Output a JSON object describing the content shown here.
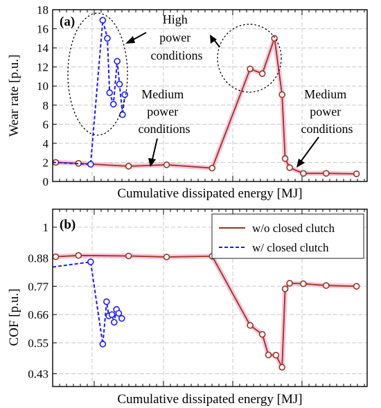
{
  "chart_data": [
    {
      "panel_label": "(a)",
      "type": "line",
      "xlabel": "Cumulative dissipated energy [MJ]",
      "ylabel": "Wear rate [p.u.]",
      "ylim": [
        0,
        18
      ],
      "yticks": [
        0,
        2,
        4,
        6,
        8,
        10,
        12,
        14,
        16,
        18
      ],
      "xticks_labeled": false,
      "grid": true,
      "series": [
        {
          "key": "wo",
          "color": "#a03020",
          "dash": "solid",
          "x": [
            -0.3,
            1.2,
            4.5,
            7.0,
            10.0,
            12.5,
            13.3,
            14.1,
            14.6,
            14.8,
            15.1,
            16.0,
            17.5,
            19.5
          ],
          "y": [
            2.0,
            1.9,
            1.6,
            1.75,
            1.4,
            11.8,
            11.3,
            15.0,
            9.1,
            2.4,
            1.45,
            0.85,
            0.85,
            0.8
          ]
        },
        {
          "key": "w",
          "color": "#1a1aff",
          "dash": "dashed",
          "x": [
            -0.5,
            2.0,
            2.8,
            3.1,
            3.25,
            3.5,
            3.75,
            3.9,
            4.1,
            4.25
          ],
          "y": [
            2.0,
            1.8,
            16.9,
            15.0,
            9.3,
            8.1,
            12.6,
            10.2,
            7.0,
            9.1
          ]
        }
      ],
      "annotations": [
        {
          "lines": [
            "High",
            "power",
            "conditions"
          ]
        },
        {
          "lines": [
            "Medium",
            "power",
            "conditions"
          ]
        },
        {
          "lines": [
            "Medium",
            "power",
            "conditions"
          ]
        }
      ]
    },
    {
      "panel_label": "(b)",
      "type": "line",
      "xlabel": "Cumulative dissipated energy [MJ]",
      "ylabel": "COF [p.u.]",
      "ylim": [
        0.38,
        1.07
      ],
      "yticks": [
        0.43,
        0.55,
        0.66,
        0.77,
        0.88,
        1
      ],
      "yticklabels": [
        "0.43",
        "0.55",
        "0.66",
        "0.77",
        "0.88",
        "1"
      ],
      "xticks_labeled": false,
      "grid": true,
      "legend": {
        "placement": "top-right",
        "entries": [
          {
            "key": "wo",
            "label": "w/o closed clutch"
          },
          {
            "key": "w",
            "label": "w/ closed clutch"
          }
        ]
      },
      "series": [
        {
          "key": "wo",
          "color": "#a03020",
          "dash": "solid",
          "x": [
            -0.3,
            1.2,
            4.5,
            7.0,
            10.0,
            12.5,
            13.3,
            13.7,
            14.2,
            14.6,
            14.8,
            15.1,
            16.0,
            17.5,
            19.5
          ],
          "y": [
            0.885,
            0.89,
            0.888,
            0.884,
            0.887,
            0.618,
            0.583,
            0.503,
            0.502,
            0.455,
            0.76,
            0.782,
            0.78,
            0.773,
            0.77
          ]
        },
        {
          "key": "w",
          "color": "#1a1aff",
          "dash": "dashed",
          "x": [
            -0.5,
            2.0,
            2.8,
            3.05,
            3.2,
            3.4,
            3.55,
            3.7,
            3.85,
            4.05
          ],
          "y": [
            0.845,
            0.865,
            0.545,
            0.71,
            0.655,
            0.66,
            0.63,
            0.68,
            0.665,
            0.645
          ]
        }
      ]
    }
  ]
}
